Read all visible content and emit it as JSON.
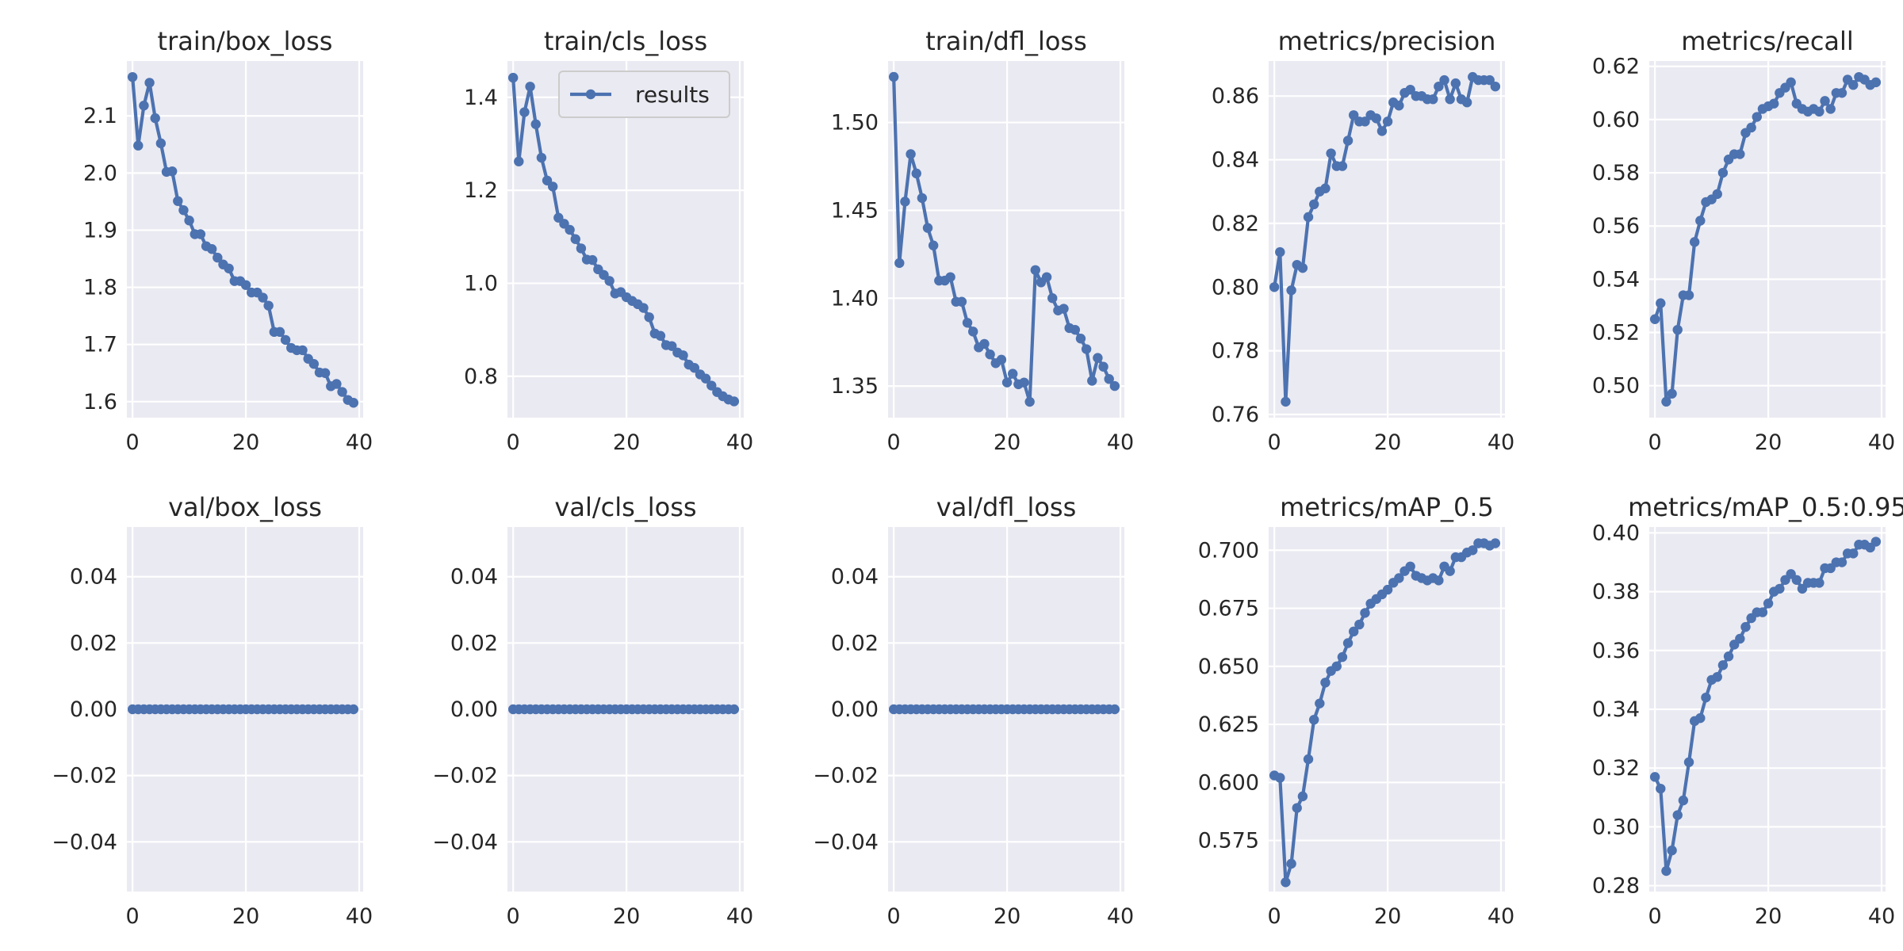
{
  "figure": {
    "background": "#ffffff",
    "plot_background": "#eaeaf2",
    "grid_color": "#ffffff",
    "series_color": "#4c72b0"
  },
  "chart_data": [
    {
      "type": "line",
      "title": "train/box_loss",
      "x": [
        0,
        1,
        2,
        3,
        4,
        5,
        6,
        7,
        8,
        9,
        10,
        11,
        12,
        13,
        14,
        15,
        16,
        17,
        18,
        19,
        20,
        21,
        22,
        23,
        24,
        25,
        26,
        27,
        28,
        29,
        30,
        31,
        32,
        33,
        34,
        35,
        36,
        37,
        38,
        39
      ],
      "values": [
        2.168,
        2.048,
        2.118,
        2.158,
        2.096,
        2.052,
        2.002,
        2.003,
        1.951,
        1.935,
        1.917,
        1.893,
        1.893,
        1.872,
        1.867,
        1.852,
        1.84,
        1.833,
        1.811,
        1.811,
        1.804,
        1.791,
        1.791,
        1.782,
        1.768,
        1.722,
        1.722,
        1.708,
        1.694,
        1.69,
        1.69,
        1.675,
        1.666,
        1.651,
        1.65,
        1.627,
        1.631,
        1.617,
        1.603,
        1.598
      ],
      "xlim": [
        -1,
        40.7
      ],
      "ylim": [
        1.572,
        2.196
      ],
      "xticks": [
        0,
        20,
        40
      ],
      "yticks": [
        1.6,
        1.7,
        1.8,
        1.9,
        2.0,
        2.1
      ],
      "xtick_labels": [
        "0",
        "20",
        "40"
      ],
      "ytick_labels": [
        "1.6",
        "1.7",
        "1.8",
        "1.9",
        "2.0",
        "2.1"
      ],
      "grid": true
    },
    {
      "type": "line",
      "title": "train/cls_loss",
      "x": [
        0,
        1,
        2,
        3,
        4,
        5,
        6,
        7,
        8,
        9,
        10,
        11,
        12,
        13,
        14,
        15,
        16,
        17,
        18,
        19,
        20,
        21,
        22,
        23,
        24,
        25,
        26,
        27,
        28,
        29,
        30,
        31,
        32,
        33,
        34,
        35,
        36,
        37,
        38,
        39
      ],
      "values": [
        1.442,
        1.262,
        1.368,
        1.423,
        1.342,
        1.27,
        1.221,
        1.208,
        1.141,
        1.128,
        1.115,
        1.095,
        1.075,
        1.051,
        1.05,
        1.03,
        1.018,
        1.005,
        0.978,
        0.981,
        0.97,
        0.962,
        0.955,
        0.947,
        0.927,
        0.892,
        0.887,
        0.867,
        0.865,
        0.851,
        0.845,
        0.825,
        0.818,
        0.804,
        0.795,
        0.78,
        0.766,
        0.757,
        0.75,
        0.746
      ],
      "xlim": [
        -1,
        40.7
      ],
      "ylim": [
        0.711,
        1.478
      ],
      "xticks": [
        0,
        20,
        40
      ],
      "yticks": [
        0.8,
        1.0,
        1.2,
        1.4
      ],
      "xtick_labels": [
        "0",
        "20",
        "40"
      ],
      "ytick_labels": [
        "0.8",
        "1.0",
        "1.2",
        "1.4"
      ],
      "grid": true,
      "legend": {
        "label": "results",
        "placement": "upper-right"
      }
    },
    {
      "type": "line",
      "title": "train/dfl_loss",
      "x": [
        0,
        1,
        2,
        3,
        4,
        5,
        6,
        7,
        8,
        9,
        10,
        11,
        12,
        13,
        14,
        15,
        16,
        17,
        18,
        19,
        20,
        21,
        22,
        23,
        24,
        25,
        26,
        27,
        28,
        29,
        30,
        31,
        32,
        33,
        34,
        35,
        36,
        37,
        38,
        39
      ],
      "values": [
        1.526,
        1.42,
        1.455,
        1.482,
        1.471,
        1.457,
        1.44,
        1.43,
        1.41,
        1.41,
        1.412,
        1.398,
        1.398,
        1.386,
        1.381,
        1.372,
        1.374,
        1.368,
        1.363,
        1.365,
        1.352,
        1.357,
        1.351,
        1.352,
        1.341,
        1.416,
        1.409,
        1.412,
        1.4,
        1.393,
        1.394,
        1.383,
        1.382,
        1.377,
        1.371,
        1.353,
        1.366,
        1.361,
        1.354,
        1.35
      ],
      "xlim": [
        -1,
        40.7
      ],
      "ylim": [
        1.332,
        1.535
      ],
      "xticks": [
        0,
        20,
        40
      ],
      "yticks": [
        1.35,
        1.4,
        1.45,
        1.5
      ],
      "xtick_labels": [
        "0",
        "20",
        "40"
      ],
      "ytick_labels": [
        "1.35",
        "1.40",
        "1.45",
        "1.50"
      ],
      "grid": true
    },
    {
      "type": "line",
      "title": "metrics/precision",
      "x": [
        0,
        1,
        2,
        3,
        4,
        5,
        6,
        7,
        8,
        9,
        10,
        11,
        12,
        13,
        14,
        15,
        16,
        17,
        18,
        19,
        20,
        21,
        22,
        23,
        24,
        25,
        26,
        27,
        28,
        29,
        30,
        31,
        32,
        33,
        34,
        35,
        36,
        37,
        38,
        39
      ],
      "values": [
        0.8,
        0.811,
        0.764,
        0.799,
        0.807,
        0.806,
        0.822,
        0.826,
        0.83,
        0.831,
        0.842,
        0.838,
        0.838,
        0.846,
        0.854,
        0.852,
        0.852,
        0.854,
        0.853,
        0.849,
        0.852,
        0.858,
        0.857,
        0.861,
        0.862,
        0.86,
        0.86,
        0.859,
        0.859,
        0.863,
        0.865,
        0.859,
        0.864,
        0.859,
        0.858,
        0.866,
        0.865,
        0.865,
        0.865,
        0.863
      ],
      "xlim": [
        -1,
        40.7
      ],
      "ylim": [
        0.759,
        0.871
      ],
      "xticks": [
        0,
        20,
        40
      ],
      "yticks": [
        0.76,
        0.78,
        0.8,
        0.82,
        0.84,
        0.86
      ],
      "xtick_labels": [
        "0",
        "20",
        "40"
      ],
      "ytick_labels": [
        "0.76",
        "0.78",
        "0.80",
        "0.82",
        "0.84",
        "0.86"
      ],
      "grid": true
    },
    {
      "type": "line",
      "title": "metrics/recall",
      "x": [
        0,
        1,
        2,
        3,
        4,
        5,
        6,
        7,
        8,
        9,
        10,
        11,
        12,
        13,
        14,
        15,
        16,
        17,
        18,
        19,
        20,
        21,
        22,
        23,
        24,
        25,
        26,
        27,
        28,
        29,
        30,
        31,
        32,
        33,
        34,
        35,
        36,
        37,
        38,
        39
      ],
      "values": [
        0.525,
        0.531,
        0.494,
        0.497,
        0.521,
        0.534,
        0.534,
        0.554,
        0.562,
        0.569,
        0.57,
        0.572,
        0.58,
        0.585,
        0.587,
        0.587,
        0.595,
        0.597,
        0.601,
        0.604,
        0.605,
        0.606,
        0.61,
        0.612,
        0.614,
        0.606,
        0.604,
        0.603,
        0.604,
        0.603,
        0.607,
        0.604,
        0.61,
        0.61,
        0.615,
        0.613,
        0.616,
        0.615,
        0.613,
        0.614
      ],
      "xlim": [
        -1,
        40.7
      ],
      "ylim": [
        0.488,
        0.622
      ],
      "xticks": [
        0,
        20,
        40
      ],
      "yticks": [
        0.5,
        0.52,
        0.54,
        0.56,
        0.58,
        0.6,
        0.62
      ],
      "xtick_labels": [
        "0",
        "20",
        "40"
      ],
      "ytick_labels": [
        "0.50",
        "0.52",
        "0.54",
        "0.56",
        "0.58",
        "0.60",
        "0.62"
      ],
      "grid": true
    },
    {
      "type": "line",
      "title": "val/box_loss",
      "x": [
        0,
        1,
        2,
        3,
        4,
        5,
        6,
        7,
        8,
        9,
        10,
        11,
        12,
        13,
        14,
        15,
        16,
        17,
        18,
        19,
        20,
        21,
        22,
        23,
        24,
        25,
        26,
        27,
        28,
        29,
        30,
        31,
        32,
        33,
        34,
        35,
        36,
        37,
        38,
        39
      ],
      "values": [
        0,
        0,
        0,
        0,
        0,
        0,
        0,
        0,
        0,
        0,
        0,
        0,
        0,
        0,
        0,
        0,
        0,
        0,
        0,
        0,
        0,
        0,
        0,
        0,
        0,
        0,
        0,
        0,
        0,
        0,
        0,
        0,
        0,
        0,
        0,
        0,
        0,
        0,
        0,
        0
      ],
      "xlim": [
        -1,
        40.7
      ],
      "ylim": [
        -0.055,
        0.055
      ],
      "xticks": [
        0,
        20,
        40
      ],
      "yticks": [
        -0.04,
        -0.02,
        0,
        0.02,
        0.04
      ],
      "xtick_labels": [
        "0",
        "20",
        "40"
      ],
      "ytick_labels": [
        "−0.04",
        "−0.02",
        "0.00",
        "0.02",
        "0.04"
      ],
      "grid": true
    },
    {
      "type": "line",
      "title": "val/cls_loss",
      "x": [
        0,
        1,
        2,
        3,
        4,
        5,
        6,
        7,
        8,
        9,
        10,
        11,
        12,
        13,
        14,
        15,
        16,
        17,
        18,
        19,
        20,
        21,
        22,
        23,
        24,
        25,
        26,
        27,
        28,
        29,
        30,
        31,
        32,
        33,
        34,
        35,
        36,
        37,
        38,
        39
      ],
      "values": [
        0,
        0,
        0,
        0,
        0,
        0,
        0,
        0,
        0,
        0,
        0,
        0,
        0,
        0,
        0,
        0,
        0,
        0,
        0,
        0,
        0,
        0,
        0,
        0,
        0,
        0,
        0,
        0,
        0,
        0,
        0,
        0,
        0,
        0,
        0,
        0,
        0,
        0,
        0,
        0
      ],
      "xlim": [
        -1,
        40.7
      ],
      "ylim": [
        -0.055,
        0.055
      ],
      "xticks": [
        0,
        20,
        40
      ],
      "yticks": [
        -0.04,
        -0.02,
        0,
        0.02,
        0.04
      ],
      "xtick_labels": [
        "0",
        "20",
        "40"
      ],
      "ytick_labels": [
        "−0.04",
        "−0.02",
        "0.00",
        "0.02",
        "0.04"
      ],
      "grid": true
    },
    {
      "type": "line",
      "title": "val/dfl_loss",
      "x": [
        0,
        1,
        2,
        3,
        4,
        5,
        6,
        7,
        8,
        9,
        10,
        11,
        12,
        13,
        14,
        15,
        16,
        17,
        18,
        19,
        20,
        21,
        22,
        23,
        24,
        25,
        26,
        27,
        28,
        29,
        30,
        31,
        32,
        33,
        34,
        35,
        36,
        37,
        38,
        39
      ],
      "values": [
        0,
        0,
        0,
        0,
        0,
        0,
        0,
        0,
        0,
        0,
        0,
        0,
        0,
        0,
        0,
        0,
        0,
        0,
        0,
        0,
        0,
        0,
        0,
        0,
        0,
        0,
        0,
        0,
        0,
        0,
        0,
        0,
        0,
        0,
        0,
        0,
        0,
        0,
        0,
        0
      ],
      "xlim": [
        -1,
        40.7
      ],
      "ylim": [
        -0.055,
        0.055
      ],
      "xticks": [
        0,
        20,
        40
      ],
      "yticks": [
        -0.04,
        -0.02,
        0,
        0.02,
        0.04
      ],
      "xtick_labels": [
        "0",
        "20",
        "40"
      ],
      "ytick_labels": [
        "−0.04",
        "−0.02",
        "0.00",
        "0.02",
        "0.04"
      ],
      "grid": true
    },
    {
      "type": "line",
      "title": "metrics/mAP_0.5",
      "x": [
        0,
        1,
        2,
        3,
        4,
        5,
        6,
        7,
        8,
        9,
        10,
        11,
        12,
        13,
        14,
        15,
        16,
        17,
        18,
        19,
        20,
        21,
        22,
        23,
        24,
        25,
        26,
        27,
        28,
        29,
        30,
        31,
        32,
        33,
        34,
        35,
        36,
        37,
        38,
        39
      ],
      "values": [
        0.603,
        0.602,
        0.557,
        0.565,
        0.589,
        0.594,
        0.61,
        0.627,
        0.634,
        0.643,
        0.648,
        0.65,
        0.654,
        0.66,
        0.665,
        0.668,
        0.673,
        0.677,
        0.679,
        0.681,
        0.683,
        0.686,
        0.688,
        0.691,
        0.693,
        0.689,
        0.688,
        0.687,
        0.688,
        0.687,
        0.693,
        0.691,
        0.697,
        0.697,
        0.699,
        0.7,
        0.703,
        0.703,
        0.702,
        0.703
      ],
      "xlim": [
        -1,
        40.7
      ],
      "ylim": [
        0.553,
        0.71
      ],
      "xticks": [
        0,
        20,
        40
      ],
      "yticks": [
        0.575,
        0.6,
        0.625,
        0.65,
        0.675,
        0.7
      ],
      "xtick_labels": [
        "0",
        "20",
        "40"
      ],
      "ytick_labels": [
        "0.575",
        "0.600",
        "0.625",
        "0.650",
        "0.675",
        "0.700"
      ],
      "grid": true
    },
    {
      "type": "line",
      "title": "metrics/mAP_0.5:0.95",
      "x": [
        0,
        1,
        2,
        3,
        4,
        5,
        6,
        7,
        8,
        9,
        10,
        11,
        12,
        13,
        14,
        15,
        16,
        17,
        18,
        19,
        20,
        21,
        22,
        23,
        24,
        25,
        26,
        27,
        28,
        29,
        30,
        31,
        32,
        33,
        34,
        35,
        36,
        37,
        38,
        39
      ],
      "values": [
        0.317,
        0.313,
        0.285,
        0.292,
        0.304,
        0.309,
        0.322,
        0.336,
        0.337,
        0.344,
        0.35,
        0.351,
        0.355,
        0.358,
        0.362,
        0.364,
        0.368,
        0.371,
        0.373,
        0.373,
        0.376,
        0.38,
        0.381,
        0.384,
        0.386,
        0.384,
        0.381,
        0.383,
        0.383,
        0.383,
        0.388,
        0.388,
        0.39,
        0.39,
        0.393,
        0.393,
        0.396,
        0.396,
        0.395,
        0.397
      ],
      "xlim": [
        -1,
        40.7
      ],
      "ylim": [
        0.278,
        0.402
      ],
      "xticks": [
        0,
        20,
        40
      ],
      "yticks": [
        0.28,
        0.3,
        0.32,
        0.34,
        0.36,
        0.38,
        0.4
      ],
      "xtick_labels": [
        "0",
        "20",
        "40"
      ],
      "ytick_labels": [
        "0.28",
        "0.30",
        "0.32",
        "0.34",
        "0.36",
        "0.38",
        "0.40"
      ],
      "grid": true
    }
  ]
}
